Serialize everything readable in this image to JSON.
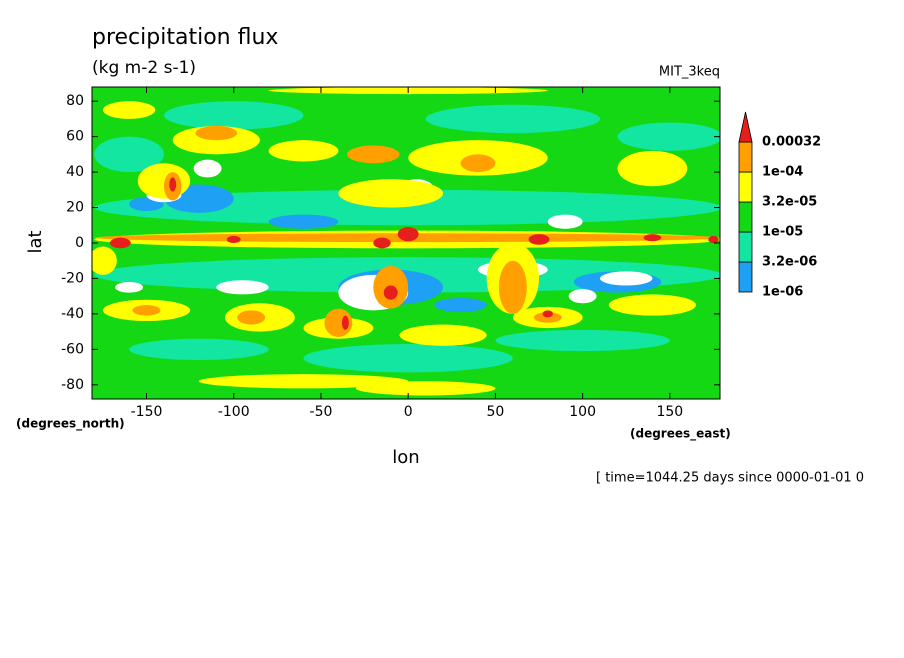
{
  "chart_data": {
    "type": "contour",
    "title": "precipitation flux",
    "subtitle": "(kg m-2 s-1)",
    "label": "MIT_3keq",
    "x_label": "lon",
    "y_label": "lat",
    "x_unit": "(degrees_east)",
    "y_unit": "(degrees_north)",
    "footer": "[ time=1044.25 days since 0000-01-01 0",
    "xlim": [
      -181.25,
      178.75
    ],
    "ylim": [
      -88,
      88
    ],
    "xticks": [
      -150,
      -100,
      -50,
      0,
      50,
      100,
      150
    ],
    "yticks": [
      -80,
      -60,
      -40,
      -20,
      0,
      20,
      40,
      60,
      80
    ],
    "levels": [
      {
        "value": 1e-06,
        "label": "1e-06"
      },
      {
        "value": 3.2e-06,
        "label": "3.2e-06"
      },
      {
        "value": 1e-05,
        "label": "1e-05"
      },
      {
        "value": 3.2e-05,
        "label": "3.2e-05"
      },
      {
        "value": 0.0001,
        "label": "1e-04"
      },
      0.00032
    ],
    "colors": [
      "#1ea0f5",
      "#12e6a0",
      "#14d814",
      "#ffff00",
      "#ffa000",
      "#e61e1e"
    ]
  }
}
